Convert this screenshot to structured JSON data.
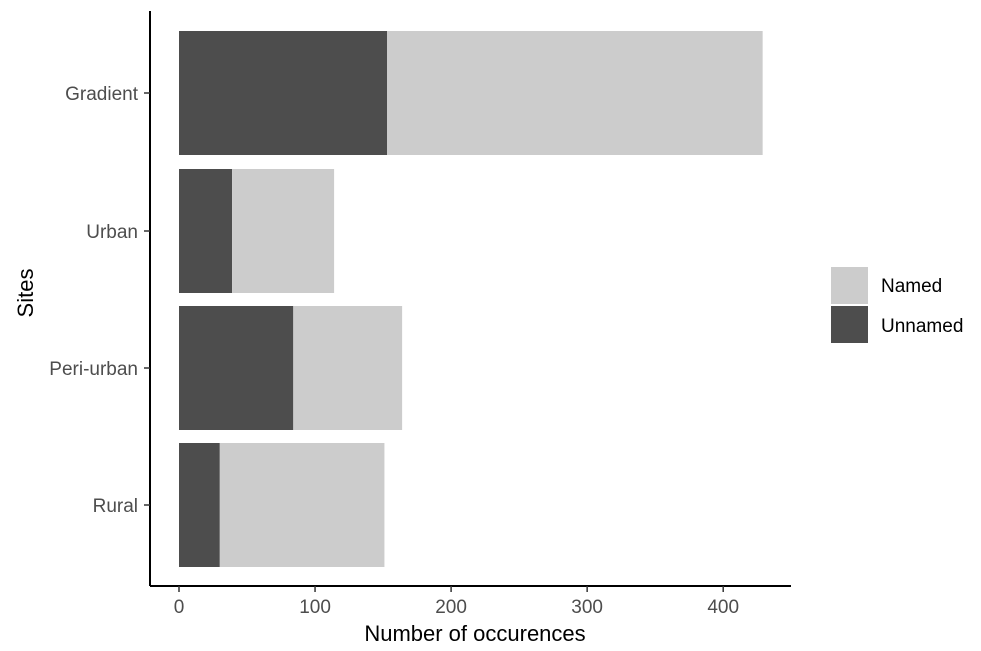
{
  "chart_data": {
    "type": "bar",
    "orientation": "horizontal",
    "stacked": true,
    "categories": [
      "Gradient",
      "Urban",
      "Peri-urban",
      "Rural"
    ],
    "series": [
      {
        "name": "Unnamed",
        "color": "#4d4d4d",
        "values": [
          153,
          39,
          84,
          30
        ]
      },
      {
        "name": "Named",
        "color": "#cccccc",
        "values": [
          276,
          75,
          80,
          121
        ]
      }
    ],
    "xlabel": "Number of occurences",
    "ylabel": "Sites",
    "xlim": [
      -22,
      450
    ],
    "x_ticks": [
      0,
      100,
      200,
      300,
      400
    ],
    "grid": false,
    "legend": {
      "position": "right",
      "items": [
        {
          "label": "Named",
          "color": "#cccccc"
        },
        {
          "label": "Unnamed",
          "color": "#4d4d4d"
        }
      ]
    }
  }
}
